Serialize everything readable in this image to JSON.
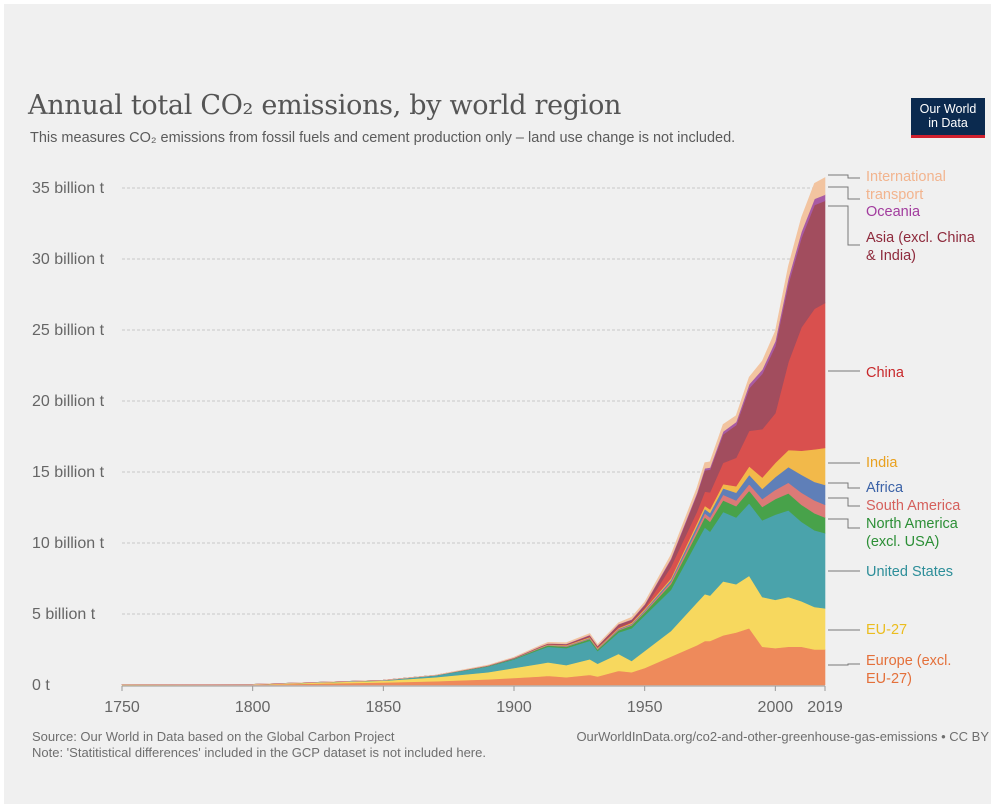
{
  "header": {
    "title": "Annual total CO₂ emissions, by world region",
    "subtitle": "This measures CO₂ emissions from fossil fuels and cement production only – land use change is not included.",
    "logo_line1": "Our World",
    "logo_line2": "in Data"
  },
  "footer": {
    "source": "Source: Our World in Data based on the Global Carbon Project",
    "url": "OurWorldInData.org/co2-and-other-greenhouse-gas-emissions • CC BY",
    "note": "Note: 'Statitistical differences' included in the GCP dataset is not included here."
  },
  "chart_data": {
    "type": "area",
    "stacked": true,
    "x_unit": "year",
    "y_unit": "billion t",
    "ylim": [
      0,
      37
    ],
    "xlim": [
      1750,
      2019
    ],
    "x_ticks": [
      "1750",
      "1800",
      "1850",
      "1900",
      "1950",
      "2000",
      "2019"
    ],
    "y_ticks": [
      {
        "value": 0,
        "label": "0 t"
      },
      {
        "value": 5,
        "label": "5 billion t"
      },
      {
        "value": 10,
        "label": "10 billion t"
      },
      {
        "value": 15,
        "label": "15 billion t"
      },
      {
        "value": 20,
        "label": "20 billion t"
      },
      {
        "value": 25,
        "label": "25 billion t"
      },
      {
        "value": 30,
        "label": "30 billion t"
      },
      {
        "value": 35,
        "label": "35 billion t"
      }
    ],
    "grid": true,
    "x": [
      1750,
      1800,
      1850,
      1870,
      1890,
      1900,
      1910,
      1913,
      1920,
      1929,
      1932,
      1940,
      1945,
      1950,
      1960,
      1970,
      1973,
      1975,
      1980,
      1985,
      1990,
      1995,
      2000,
      2005,
      2010,
      2015,
      2019
    ],
    "series": [
      {
        "name": "Europe (excl. EU-27)",
        "color": "#ee8a5b",
        "values": [
          0.01,
          0.03,
          0.18,
          0.27,
          0.4,
          0.5,
          0.6,
          0.65,
          0.55,
          0.72,
          0.6,
          1.0,
          0.9,
          1.2,
          2.0,
          2.8,
          3.1,
          3.1,
          3.5,
          3.7,
          4.0,
          2.7,
          2.6,
          2.7,
          2.7,
          2.5,
          2.5
        ]
      },
      {
        "name": "EU-27",
        "color": "#f7d85e",
        "values": [
          0.01,
          0.02,
          0.12,
          0.28,
          0.5,
          0.7,
          0.9,
          0.95,
          0.85,
          1.1,
          0.9,
          1.2,
          0.8,
          1.2,
          1.8,
          3.0,
          3.3,
          3.2,
          3.8,
          3.4,
          3.7,
          3.5,
          3.4,
          3.5,
          3.2,
          3.0,
          2.9
        ]
      },
      {
        "name": "United States",
        "color": "#4aa3ab",
        "values": [
          0.0,
          0.0,
          0.03,
          0.12,
          0.4,
          0.6,
          1.0,
          1.1,
          1.2,
          1.3,
          0.9,
          1.5,
          2.3,
          2.5,
          2.9,
          4.3,
          4.7,
          4.5,
          4.9,
          4.7,
          5.1,
          5.4,
          6.0,
          6.1,
          5.6,
          5.4,
          5.3
        ]
      },
      {
        "name": "North America (excl. USA)",
        "color": "#48a24a",
        "values": [
          0.0,
          0.0,
          0.01,
          0.02,
          0.03,
          0.05,
          0.08,
          0.09,
          0.1,
          0.12,
          0.1,
          0.15,
          0.2,
          0.22,
          0.4,
          0.6,
          0.7,
          0.7,
          0.8,
          0.8,
          0.9,
          0.95,
          1.1,
          1.2,
          1.2,
          1.2,
          1.1
        ]
      },
      {
        "name": "South America",
        "color": "#dc7a77",
        "values": [
          0.0,
          0.0,
          0.0,
          0.0,
          0.01,
          0.01,
          0.02,
          0.02,
          0.03,
          0.04,
          0.03,
          0.05,
          0.06,
          0.08,
          0.15,
          0.25,
          0.3,
          0.3,
          0.4,
          0.4,
          0.45,
          0.55,
          0.65,
          0.75,
          0.85,
          0.9,
          0.9
        ]
      },
      {
        "name": "Africa",
        "color": "#5f7fb8",
        "values": [
          0.0,
          0.0,
          0.0,
          0.0,
          0.01,
          0.01,
          0.02,
          0.02,
          0.03,
          0.04,
          0.04,
          0.05,
          0.06,
          0.08,
          0.14,
          0.25,
          0.3,
          0.32,
          0.45,
          0.55,
          0.65,
          0.72,
          0.9,
          1.1,
          1.25,
          1.3,
          1.4
        ]
      },
      {
        "name": "India",
        "color": "#f2b94a",
        "values": [
          0.0,
          0.0,
          0.0,
          0.0,
          0.01,
          0.02,
          0.03,
          0.03,
          0.04,
          0.05,
          0.05,
          0.06,
          0.07,
          0.08,
          0.12,
          0.2,
          0.22,
          0.25,
          0.3,
          0.45,
          0.6,
          0.8,
          1.0,
          1.2,
          1.7,
          2.3,
          2.6
        ]
      },
      {
        "name": "China",
        "color": "#d9504e",
        "values": [
          0.0,
          0.0,
          0.0,
          0.0,
          0.0,
          0.0,
          0.01,
          0.01,
          0.02,
          0.03,
          0.03,
          0.05,
          0.05,
          0.08,
          0.8,
          0.8,
          1.0,
          1.2,
          1.5,
          2.0,
          2.5,
          3.4,
          3.5,
          6.2,
          8.7,
          9.9,
          10.2
        ]
      },
      {
        "name": "Asia (excl. China & India)",
        "color": "#a24d5e",
        "values": [
          0.0,
          0.0,
          0.0,
          0.0,
          0.01,
          0.02,
          0.04,
          0.05,
          0.06,
          0.1,
          0.1,
          0.2,
          0.15,
          0.2,
          0.5,
          1.2,
          1.5,
          1.6,
          2.0,
          2.3,
          3.0,
          3.9,
          4.7,
          5.5,
          6.3,
          7.3,
          7.2
        ]
      },
      {
        "name": "Oceania",
        "color": "#a85ba4",
        "values": [
          0.0,
          0.0,
          0.0,
          0.0,
          0.01,
          0.01,
          0.02,
          0.02,
          0.02,
          0.03,
          0.02,
          0.03,
          0.03,
          0.05,
          0.08,
          0.12,
          0.14,
          0.15,
          0.2,
          0.22,
          0.28,
          0.3,
          0.36,
          0.4,
          0.43,
          0.43,
          0.43
        ]
      },
      {
        "name": "International transport",
        "color": "#f2c4a0",
        "values": [
          0.0,
          0.0,
          0.0,
          0.01,
          0.02,
          0.04,
          0.06,
          0.07,
          0.08,
          0.1,
          0.08,
          0.1,
          0.15,
          0.15,
          0.25,
          0.35,
          0.4,
          0.4,
          0.5,
          0.45,
          0.5,
          0.6,
          0.7,
          0.85,
          1.0,
          1.1,
          1.2
        ]
      }
    ],
    "legend": {
      "placement": "right",
      "entries": [
        {
          "series": "International transport",
          "lines": [
            "International",
            "transport"
          ],
          "color": "#f2b48e"
        },
        {
          "series": "Oceania",
          "lines": [
            "Oceania"
          ],
          "color": "#a23c9e"
        },
        {
          "series": "Asia (excl. China & India)",
          "lines": [
            "Asia (excl. China",
            "& India)"
          ],
          "color": "#8e2a3c"
        },
        {
          "series": "China",
          "lines": [
            "China"
          ],
          "color": "#c8282b"
        },
        {
          "series": "India",
          "lines": [
            "India"
          ],
          "color": "#e9a11f"
        },
        {
          "series": "Africa",
          "lines": [
            "Africa"
          ],
          "color": "#3b62a7"
        },
        {
          "series": "South America",
          "lines": [
            "South America"
          ],
          "color": "#d5605c"
        },
        {
          "series": "North America (excl. USA)",
          "lines": [
            "North America",
            "(excl. USA)"
          ],
          "color": "#2c8f36"
        },
        {
          "series": "United States",
          "lines": [
            "United States"
          ],
          "color": "#2d8e99"
        },
        {
          "series": "EU-27",
          "lines": [
            "EU-27"
          ],
          "color": "#ebbd1f"
        },
        {
          "series": "Europe (excl. EU-27)",
          "lines": [
            "Europe (excl.",
            "EU-27)"
          ],
          "color": "#e4703a"
        }
      ]
    }
  }
}
